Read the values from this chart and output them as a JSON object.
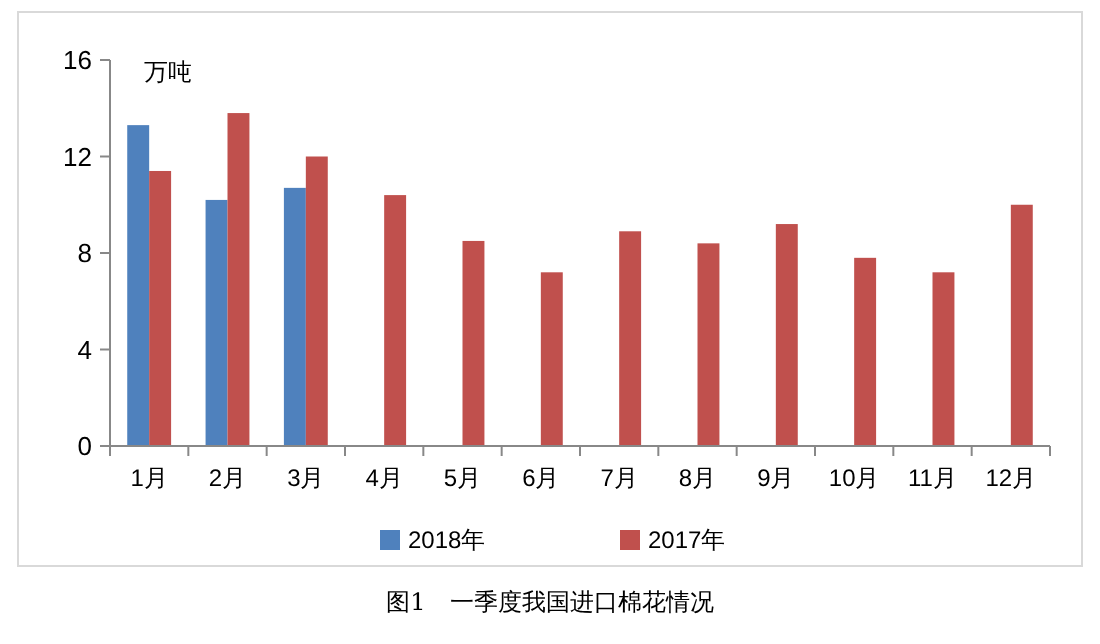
{
  "chart_data": {
    "type": "bar",
    "ylabel": "万吨",
    "categories": [
      "1月",
      "2月",
      "3月",
      "4月",
      "5月",
      "6月",
      "7月",
      "8月",
      "9月",
      "10月",
      "11月",
      "12月"
    ],
    "series": [
      {
        "name": "2018年",
        "color": "#4f81bd",
        "values": [
          13.3,
          10.2,
          10.7,
          null,
          null,
          null,
          null,
          null,
          null,
          null,
          null,
          null
        ]
      },
      {
        "name": "2017年",
        "color": "#c0504d",
        "values": [
          11.4,
          13.8,
          12.0,
          10.4,
          8.5,
          7.2,
          8.9,
          8.4,
          9.2,
          7.8,
          7.2,
          10.0
        ]
      }
    ],
    "ylim": [
      0,
      16
    ],
    "yticks": [
      0,
      4,
      8,
      12,
      16
    ],
    "grid": false,
    "legend": "bottom",
    "annotations": [
      "图1　一季度我国进口棉花情况"
    ]
  }
}
